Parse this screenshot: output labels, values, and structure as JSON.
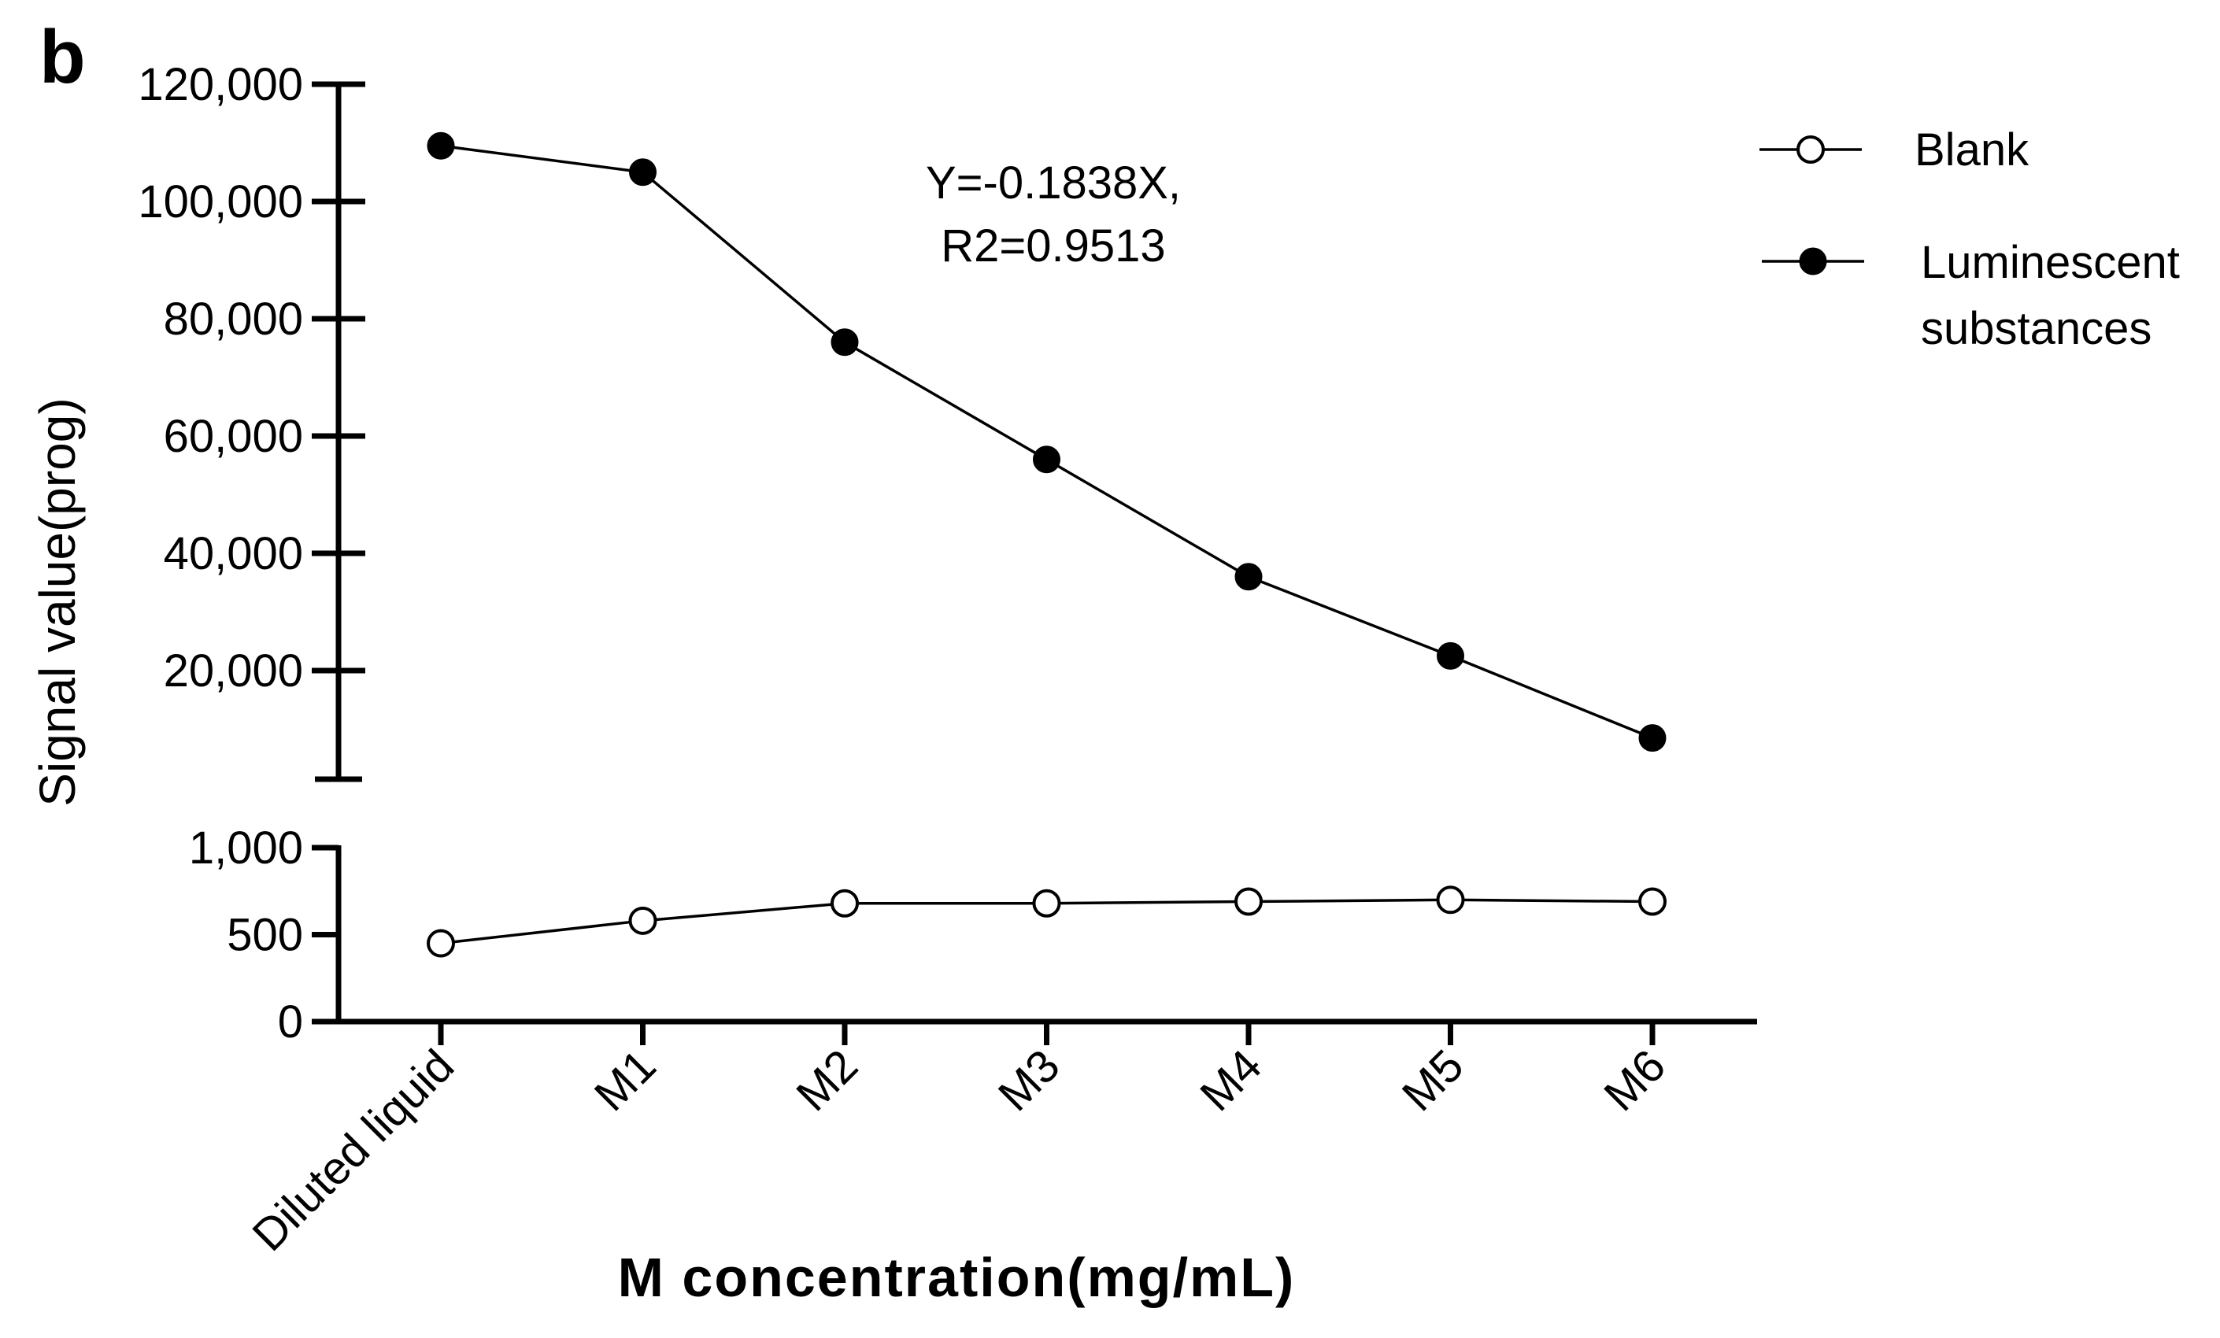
{
  "chart_data": {
    "type": "line",
    "panel_label": "b",
    "xlabel": "M concentration(mg/mL)",
    "ylabel": "Signal value(prog)",
    "categories": [
      "Diluted liquid",
      "M1",
      "M2",
      "M3",
      "M4",
      "M5",
      "M6"
    ],
    "y_axis_broken": true,
    "y_upper_ticks": [
      {
        "value": 20000,
        "label": "20,000"
      },
      {
        "value": 40000,
        "label": "40,000"
      },
      {
        "value": 60000,
        "label": "60,000"
      },
      {
        "value": 80000,
        "label": "80,000"
      },
      {
        "value": 100000,
        "label": "100,000"
      },
      {
        "value": 120000,
        "label": "120,000"
      }
    ],
    "y_upper_range": [
      0,
      120000
    ],
    "y_lower_ticks": [
      {
        "value": 0,
        "label": "0"
      },
      {
        "value": 500,
        "label": "500"
      },
      {
        "value": 1000,
        "label": "1,000"
      }
    ],
    "y_lower_range": [
      0,
      1000
    ],
    "series": [
      {
        "name": "Blank",
        "marker": "open-circle",
        "segment": "lower",
        "values": [
          450,
          580,
          680,
          680,
          690,
          700,
          690
        ]
      },
      {
        "name": "Luminescent substances",
        "legend_lines": [
          "Luminescent",
          "substances"
        ],
        "marker": "filled-circle",
        "segment": "upper",
        "values": [
          109500,
          105000,
          76000,
          56000,
          36000,
          22500,
          8500
        ]
      }
    ],
    "annotation": {
      "lines": [
        "Y=-0.1838X,",
        "R2=0.9513"
      ]
    },
    "legend_position": "top-right",
    "grid": false
  }
}
